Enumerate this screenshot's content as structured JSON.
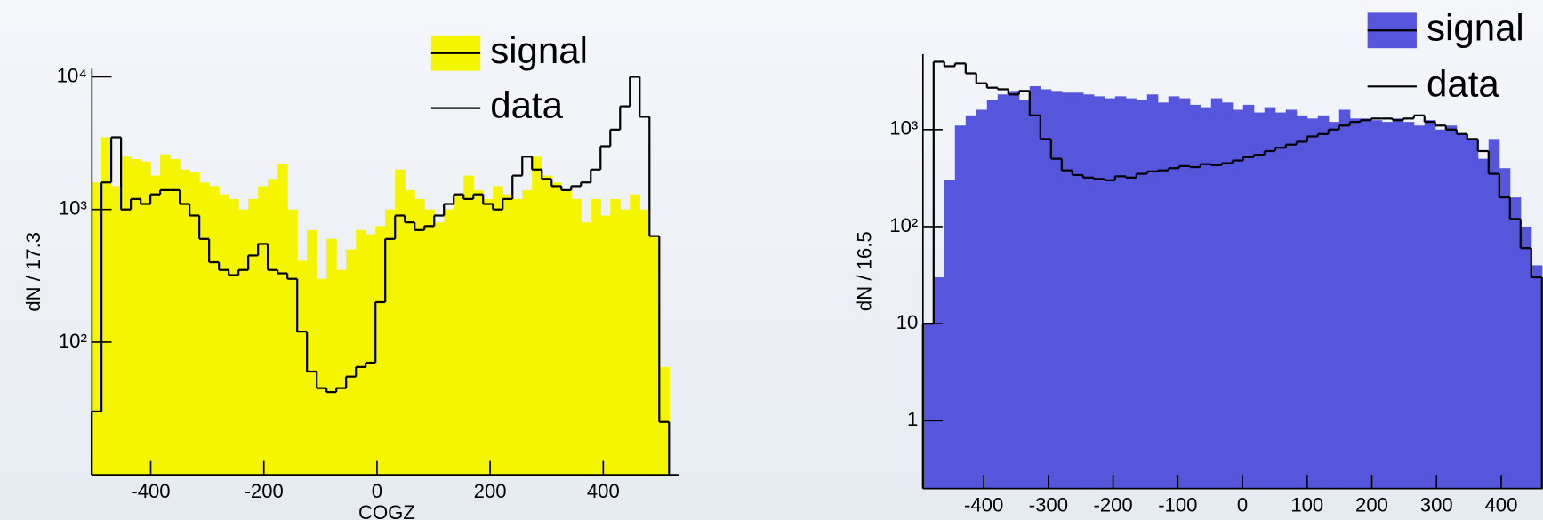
{
  "chart_data": [
    {
      "type": "histogram",
      "xlabel": "COGZ",
      "ylabel": "dN / 17.3",
      "log_y": true,
      "bins": [
        -504.4,
        -487.1,
        -469.8,
        -452.5,
        -435.2,
        -417.9,
        -400.6,
        -383.3,
        -366.0,
        -348.7,
        -331.4,
        -314.1,
        -296.8,
        -279.5,
        -262.2,
        -244.9,
        -227.6,
        -210.3,
        -193.0,
        -175.7,
        -158.4,
        -141.1,
        -123.8,
        -106.5,
        -89.2,
        -71.9,
        -54.6,
        -37.3,
        -20.0,
        -2.7,
        14.6,
        31.9,
        49.2,
        66.5,
        83.8,
        101.1,
        118.4,
        135.7,
        153.0,
        170.3,
        187.6,
        204.9,
        222.2,
        239.5,
        256.8,
        274.1,
        291.4,
        308.7,
        326.0,
        343.3,
        360.6,
        377.9,
        395.2,
        412.5,
        429.8,
        447.1,
        464.4,
        481.7,
        499.0,
        516.3
      ],
      "series": [
        {
          "name": "signal",
          "color": "#f5f500",
          "fill": true,
          "values": [
            1600,
            3500,
            1500,
            2500,
            2400,
            2300,
            1800,
            2600,
            2400,
            2000,
            1900,
            1600,
            1500,
            1300,
            1200,
            1000,
            1200,
            1500,
            1700,
            2200,
            1000,
            410,
            700,
            300,
            600,
            350,
            500,
            700,
            650,
            750,
            1000,
            2000,
            1400,
            1200,
            1000,
            800,
            1000,
            1300,
            1800,
            1400,
            1200,
            1500,
            1300,
            1200,
            1400,
            2500,
            1800,
            1600,
            1400,
            1200,
            800,
            1200,
            900,
            1200,
            1000,
            1300,
            1000,
            630,
            65
          ]
        },
        {
          "name": "data",
          "color": "#000000",
          "fill": false,
          "values": [
            30,
            1600,
            3500,
            1000,
            1200,
            1100,
            1300,
            1400,
            1400,
            1100,
            900,
            600,
            400,
            350,
            320,
            350,
            450,
            550,
            350,
            330,
            300,
            120,
            60,
            45,
            42,
            45,
            55,
            65,
            70,
            200,
            600,
            900,
            800,
            700,
            750,
            900,
            1100,
            1300,
            1200,
            1300,
            1100,
            1000,
            1200,
            1800,
            2500,
            2000,
            1700,
            1500,
            1400,
            1500,
            1600,
            2000,
            3000,
            4000,
            6000,
            10000,
            5000,
            630,
            25
          ]
        }
      ],
      "xlim": [
        -504,
        534
      ],
      "xticks": [
        -400,
        -200,
        0,
        200,
        400
      ],
      "ylim": [
        10,
        11500
      ],
      "yticks": [
        {
          "value": 100,
          "label": "10²"
        },
        {
          "value": 1000,
          "label": "10³"
        },
        {
          "value": 10000,
          "label": "10⁴"
        }
      ]
    },
    {
      "type": "histogram",
      "ylabel": "dN / 16.5",
      "log_y": true,
      "bins": [
        -494,
        -477.5,
        -461,
        -444.5,
        -428,
        -411.5,
        -395,
        -378.5,
        -362,
        -345.5,
        -329,
        -312.5,
        -296,
        -279.5,
        -263,
        -246.5,
        -230,
        -213.5,
        -197,
        -180.5,
        -164,
        -147.5,
        -131,
        -114.5,
        -98,
        -81.5,
        -65,
        -48.5,
        -32,
        -15.5,
        1,
        17.5,
        34,
        50.5,
        67,
        83.5,
        100,
        116.5,
        133,
        149.5,
        166,
        182.5,
        199,
        215.5,
        232,
        248.5,
        265,
        281.5,
        298,
        314.5,
        331,
        347.5,
        364,
        380.5,
        397,
        413.5,
        430,
        446.5,
        463
      ],
      "series": [
        {
          "name": "signal",
          "color": "#5656dc",
          "fill": true,
          "values": [
            10,
            30,
            300,
            1100,
            1400,
            1600,
            2000,
            2300,
            2500,
            2000,
            2800,
            2600,
            2500,
            2400,
            2400,
            2300,
            2200,
            2100,
            2200,
            2100,
            2000,
            2300,
            1900,
            2200,
            2100,
            1800,
            1700,
            2100,
            1900,
            1600,
            1800,
            1500,
            1700,
            1500,
            1600,
            1400,
            1300,
            1400,
            1200,
            1600,
            1300,
            1300,
            1250,
            1200,
            1300,
            1200,
            1100,
            1250,
            1000,
            1100,
            900,
            800,
            500,
            800,
            400,
            200,
            100,
            40
          ]
        },
        {
          "name": "data",
          "color": "#000000",
          "fill": false,
          "values": [
            10,
            5000,
            4500,
            4800,
            3800,
            3000,
            2700,
            2600,
            2300,
            2500,
            1400,
            800,
            500,
            380,
            340,
            320,
            310,
            300,
            330,
            320,
            350,
            370,
            380,
            400,
            420,
            410,
            440,
            430,
            450,
            480,
            520,
            550,
            600,
            650,
            700,
            750,
            850,
            900,
            1000,
            1100,
            1200,
            1250,
            1300,
            1300,
            1250,
            1300,
            1400,
            1200,
            1100,
            1000,
            900,
            800,
            600,
            350,
            200,
            120,
            60,
            30
          ]
        }
      ],
      "xlim": [
        -494,
        464
      ],
      "xticks": [
        -400,
        -300,
        -200,
        -100,
        0,
        100,
        200,
        300,
        400
      ],
      "ylim": [
        0.2,
        6000
      ],
      "yticks": [
        1,
        10,
        {
          "value": 100,
          "label": "10²"
        },
        {
          "value": 1000,
          "label": "10³"
        }
      ]
    }
  ]
}
